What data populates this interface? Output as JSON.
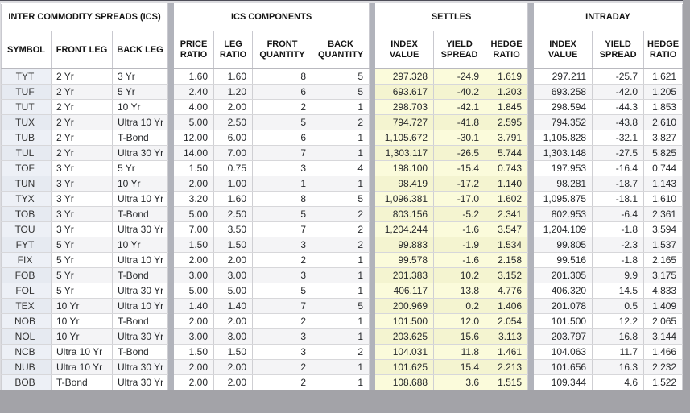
{
  "table": {
    "group_headers": [
      "INTER COMMODITY SPREADS (ICS)",
      "ICS COMPONENTS",
      "SETTLES",
      "INTRADAY"
    ],
    "column_headers": [
      "SYMBOL",
      "FRONT LEG",
      "BACK LEG",
      "PRICE RATIO",
      "LEG RATIO",
      "FRONT QUANTITY",
      "BACK QUANTITY",
      "INDEX VALUE",
      "YIELD SPREAD",
      "HEDGE RATIO",
      "INDEX VALUE",
      "YIELD SPREAD",
      "HEDGE RATIO"
    ],
    "rows": [
      [
        "TYT",
        "2 Yr",
        "3 Yr",
        "1.60",
        "1.60",
        "8",
        "5",
        "297.328",
        "-24.9",
        "1.619",
        "297.211",
        "-25.7",
        "1.621"
      ],
      [
        "TUF",
        "2 Yr",
        "5 Yr",
        "2.40",
        "1.20",
        "6",
        "5",
        "693.617",
        "-40.2",
        "1.203",
        "693.258",
        "-42.0",
        "1.205"
      ],
      [
        "TUT",
        "2 Yr",
        "10 Yr",
        "4.00",
        "2.00",
        "2",
        "1",
        "298.703",
        "-42.1",
        "1.845",
        "298.594",
        "-44.3",
        "1.853"
      ],
      [
        "TUX",
        "2 Yr",
        "Ultra 10 Yr",
        "5.00",
        "2.50",
        "5",
        "2",
        "794.727",
        "-41.8",
        "2.595",
        "794.352",
        "-43.8",
        "2.610"
      ],
      [
        "TUB",
        "2 Yr",
        "T-Bond",
        "12.00",
        "6.00",
        "6",
        "1",
        "1,105.672",
        "-30.1",
        "3.791",
        "1,105.828",
        "-32.1",
        "3.827"
      ],
      [
        "TUL",
        "2 Yr",
        "Ultra 30 Yr",
        "14.00",
        "7.00",
        "7",
        "1",
        "1,303.117",
        "-26.5",
        "5.744",
        "1,303.148",
        "-27.5",
        "5.825"
      ],
      [
        "TOF",
        "3 Yr",
        "5 Yr",
        "1.50",
        "0.75",
        "3",
        "4",
        "198.100",
        "-15.4",
        "0.743",
        "197.953",
        "-16.4",
        "0.744"
      ],
      [
        "TUN",
        "3 Yr",
        "10 Yr",
        "2.00",
        "1.00",
        "1",
        "1",
        "98.419",
        "-17.2",
        "1.140",
        "98.281",
        "-18.7",
        "1.143"
      ],
      [
        "TYX",
        "3 Yr",
        "Ultra 10 Yr",
        "3.20",
        "1.60",
        "8",
        "5",
        "1,096.381",
        "-17.0",
        "1.602",
        "1,095.875",
        "-18.1",
        "1.610"
      ],
      [
        "TOB",
        "3 Yr",
        "T-Bond",
        "5.00",
        "2.50",
        "5",
        "2",
        "803.156",
        "-5.2",
        "2.341",
        "802.953",
        "-6.4",
        "2.361"
      ],
      [
        "TOU",
        "3 Yr",
        "Ultra 30 Yr",
        "7.00",
        "3.50",
        "7",
        "2",
        "1,204.244",
        "-1.6",
        "3.547",
        "1,204.109",
        "-1.8",
        "3.594"
      ],
      [
        "FYT",
        "5 Yr",
        "10 Yr",
        "1.50",
        "1.50",
        "3",
        "2",
        "99.883",
        "-1.9",
        "1.534",
        "99.805",
        "-2.3",
        "1.537"
      ],
      [
        "FIX",
        "5 Yr",
        "Ultra 10 Yr",
        "2.00",
        "2.00",
        "2",
        "1",
        "99.578",
        "-1.6",
        "2.158",
        "99.516",
        "-1.8",
        "2.165"
      ],
      [
        "FOB",
        "5 Yr",
        "T-Bond",
        "3.00",
        "3.00",
        "3",
        "1",
        "201.383",
        "10.2",
        "3.152",
        "201.305",
        "9.9",
        "3.175"
      ],
      [
        "FOL",
        "5 Yr",
        "Ultra 30 Yr",
        "5.00",
        "5.00",
        "5",
        "1",
        "406.117",
        "13.8",
        "4.776",
        "406.320",
        "14.5",
        "4.833"
      ],
      [
        "TEX",
        "10 Yr",
        "Ultra 10 Yr",
        "1.40",
        "1.40",
        "7",
        "5",
        "200.969",
        "0.2",
        "1.406",
        "201.078",
        "0.5",
        "1.409"
      ],
      [
        "NOB",
        "10 Yr",
        "T-Bond",
        "2.00",
        "2.00",
        "2",
        "1",
        "101.500",
        "12.0",
        "2.054",
        "101.500",
        "12.2",
        "2.065"
      ],
      [
        "NOL",
        "10 Yr",
        "Ultra 30 Yr",
        "3.00",
        "3.00",
        "3",
        "1",
        "203.625",
        "15.6",
        "3.113",
        "203.797",
        "16.8",
        "3.144"
      ],
      [
        "NCB",
        "Ultra 10 Yr",
        "T-Bond",
        "1.50",
        "1.50",
        "3",
        "2",
        "104.031",
        "11.8",
        "1.461",
        "104.063",
        "11.7",
        "1.466"
      ],
      [
        "NUB",
        "Ultra 10 Yr",
        "Ultra 30 Yr",
        "2.00",
        "2.00",
        "2",
        "1",
        "101.625",
        "15.4",
        "2.213",
        "101.656",
        "16.3",
        "2.232"
      ],
      [
        "BOB",
        "T-Bond",
        "Ultra 30 Yr",
        "2.00",
        "2.00",
        "2",
        "1",
        "108.688",
        "3.6",
        "1.515",
        "109.344",
        "4.6",
        "1.522"
      ]
    ],
    "colors": {
      "settles_bg": "#fbfbdb",
      "symbol_column_bg": "#edf0f6",
      "stripe_bg": "#f4f4f6",
      "gutter": "#b1b3bb"
    }
  }
}
